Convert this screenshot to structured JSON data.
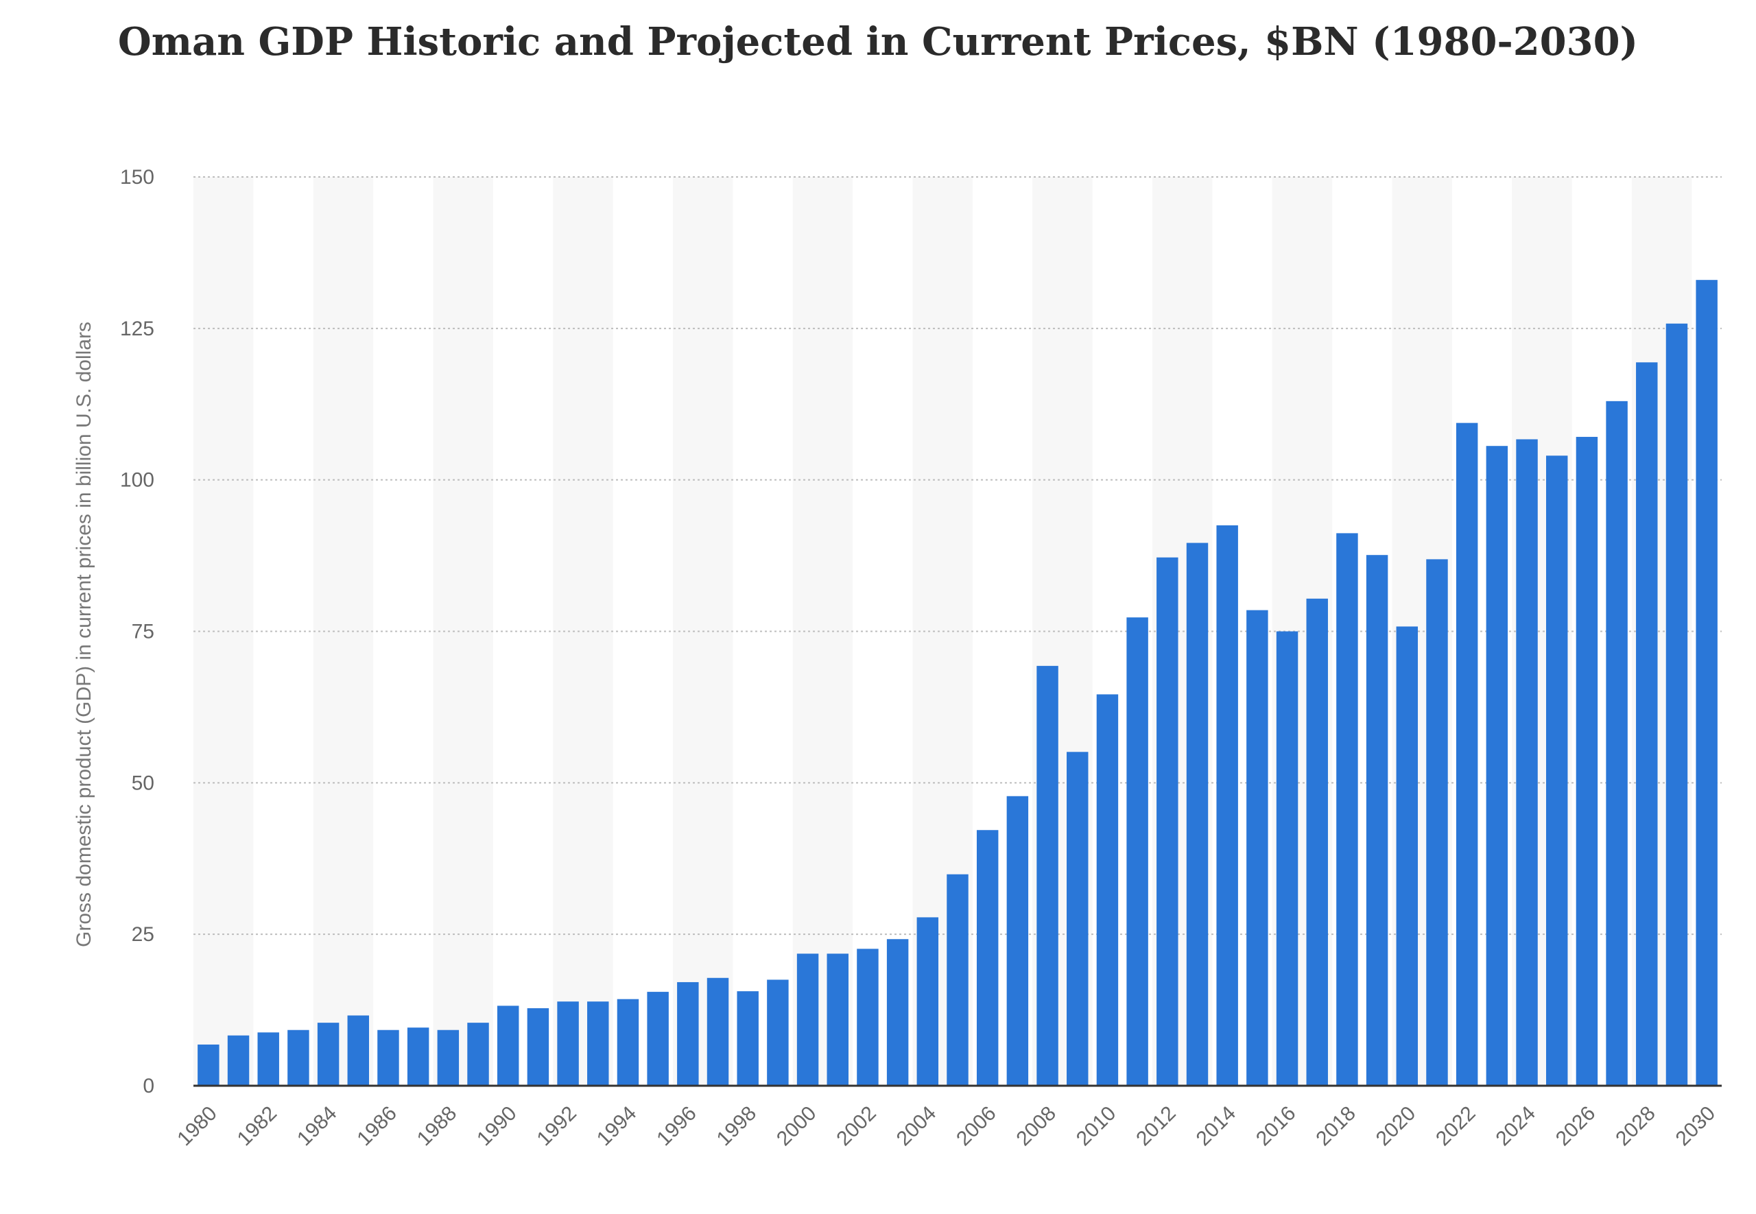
{
  "chart_data": {
    "type": "bar",
    "title": "Oman GDP Historic and Projected in Current Prices, $BN (1980-2030)",
    "xlabel": "",
    "ylabel": "Gross domestic product (GDP) in current prices in billion U.S. dollars",
    "ylim": [
      0,
      150
    ],
    "yticks": [
      0,
      25,
      50,
      75,
      100,
      125,
      150
    ],
    "grid": true,
    "bar_color": "#2a77d8",
    "categories": [
      "1980",
      "1981",
      "1982",
      "1983",
      "1984",
      "1985",
      "1986",
      "1987",
      "1988",
      "1989",
      "1990",
      "1991",
      "1992",
      "1993",
      "1994",
      "1995",
      "1996",
      "1997",
      "1998",
      "1999",
      "2000",
      "2001",
      "2002",
      "2003",
      "2004",
      "2005",
      "2006",
      "2007",
      "2008",
      "2009",
      "2010",
      "2011",
      "2012",
      "2013",
      "2014",
      "2015",
      "2016",
      "2017",
      "2018",
      "2019",
      "2020",
      "2021",
      "2022",
      "2023",
      "2024",
      "2025",
      "2026",
      "2027",
      "2028",
      "2029",
      "2030"
    ],
    "x_tick_labels": [
      "1980",
      "1982",
      "1984",
      "1986",
      "1988",
      "1990",
      "1992",
      "1994",
      "1996",
      "1998",
      "2000",
      "2002",
      "2004",
      "2006",
      "2008",
      "2010",
      "2012",
      "2014",
      "2016",
      "2018",
      "2020",
      "2022",
      "2024",
      "2026",
      "2028",
      "2030"
    ],
    "values": [
      6.8,
      8.3,
      8.8,
      9.2,
      10.4,
      11.6,
      9.2,
      9.6,
      9.2,
      10.4,
      13.2,
      12.8,
      13.9,
      13.9,
      14.3,
      15.5,
      17.1,
      17.8,
      15.6,
      17.5,
      21.8,
      21.8,
      22.6,
      24.2,
      27.8,
      34.9,
      42.2,
      47.8,
      69.3,
      55.1,
      64.6,
      77.3,
      87.2,
      89.6,
      92.5,
      78.5,
      75.0,
      80.4,
      91.2,
      87.6,
      75.8,
      86.9,
      109.4,
      105.6,
      106.7,
      104.0,
      107.1,
      113.0,
      119.4,
      125.8,
      133.0
    ]
  }
}
